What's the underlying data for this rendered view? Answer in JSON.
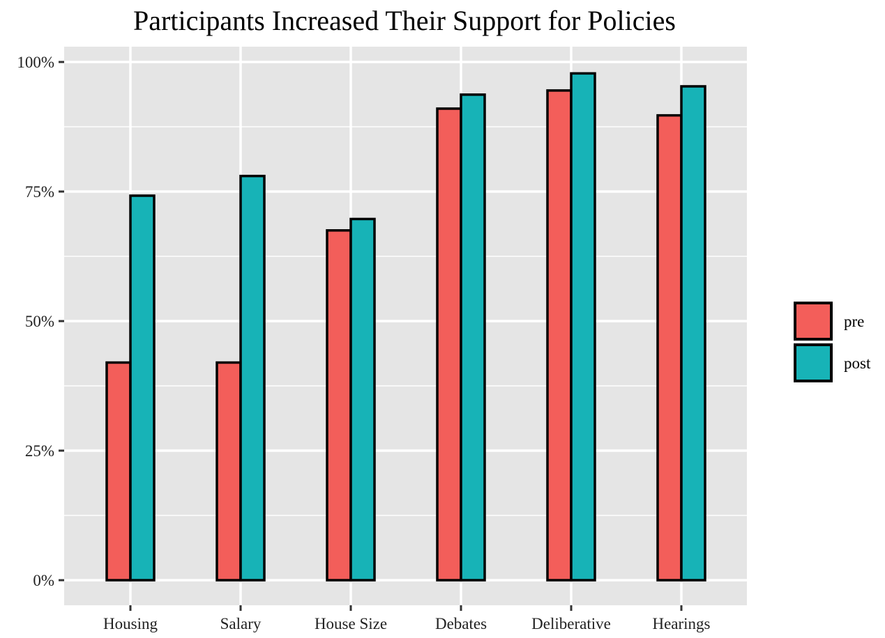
{
  "chart_data": {
    "type": "bar",
    "title": "Participants Increased Their Support for Policies",
    "xlabel": "",
    "ylabel": "",
    "categories": [
      "Housing",
      "Salary",
      "House Size",
      "Debates",
      "Deliberative",
      "Hearings"
    ],
    "series": [
      {
        "name": "pre",
        "color": "#F35E5A",
        "values": [
          42,
          42,
          67.5,
          91,
          94.5,
          89.7
        ]
      },
      {
        "name": "post",
        "color": "#17B3B7",
        "values": [
          74.2,
          78,
          69.7,
          93.7,
          97.8,
          95.3
        ]
      }
    ],
    "yticks": [
      "0%",
      "25%",
      "50%",
      "75%",
      "100%"
    ],
    "ylim": [
      -4.5,
      103
    ],
    "grid": true,
    "legend_position": "right",
    "panel_background": "#E5E5E5",
    "grid_color": "#FFFFFF",
    "bar_outline": "#000000"
  }
}
